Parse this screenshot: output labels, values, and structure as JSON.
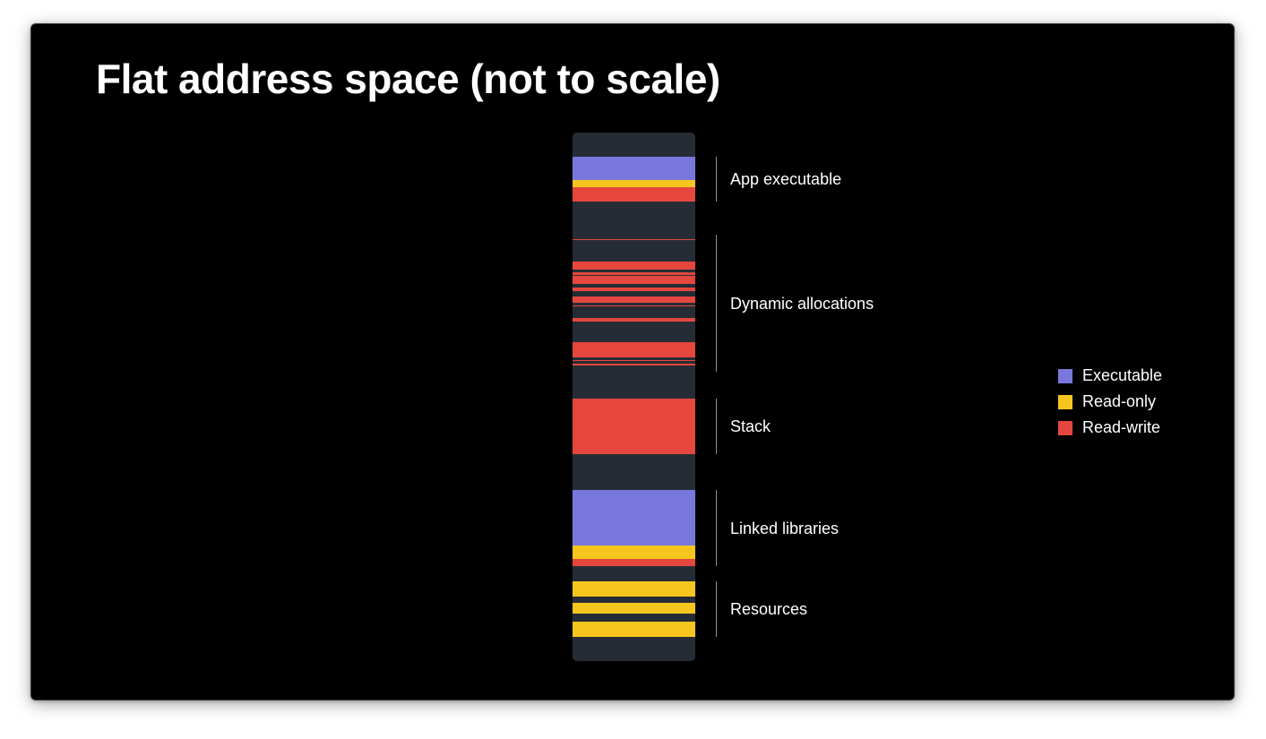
{
  "title": "Flat address space (not to scale)",
  "colors": {
    "executable": "#7878dc",
    "read_only": "#f7c61e",
    "read_write": "#e5473e",
    "unmapped": "#262c35"
  },
  "regions": [
    {
      "label": "App executable",
      "segments": [
        {
          "type": "executable",
          "from": 0.046,
          "to": 0.09
        },
        {
          "type": "read_only",
          "from": 0.09,
          "to": 0.104
        },
        {
          "type": "read_write",
          "from": 0.104,
          "to": 0.131
        }
      ]
    },
    {
      "label": "Dynamic allocations",
      "segments": [
        {
          "type": "read_write",
          "from": 0.201,
          "to": 0.204
        },
        {
          "type": "read_write",
          "from": 0.244,
          "to": 0.26
        },
        {
          "type": "read_write",
          "from": 0.264,
          "to": 0.269
        },
        {
          "type": "read_write",
          "from": 0.272,
          "to": 0.287
        },
        {
          "type": "read_write",
          "from": 0.293,
          "to": 0.3
        },
        {
          "type": "read_write",
          "from": 0.311,
          "to": 0.322
        },
        {
          "type": "read_write",
          "from": 0.327,
          "to": 0.329
        },
        {
          "type": "read_write",
          "from": 0.351,
          "to": 0.357
        },
        {
          "type": "read_write",
          "from": 0.396,
          "to": 0.426
        },
        {
          "type": "read_write",
          "from": 0.43,
          "to": 0.433
        },
        {
          "type": "read_write",
          "from": 0.437,
          "to": 0.441
        }
      ]
    },
    {
      "label": "Stack",
      "segments": [
        {
          "type": "read_write",
          "from": 0.504,
          "to": 0.608
        }
      ]
    },
    {
      "label": "Linked libraries",
      "segments": [
        {
          "type": "executable",
          "from": 0.677,
          "to": 0.781
        },
        {
          "type": "read_only",
          "from": 0.781,
          "to": 0.806
        },
        {
          "type": "read_write",
          "from": 0.806,
          "to": 0.821
        }
      ]
    },
    {
      "label": "Resources",
      "segments": [
        {
          "type": "read_only",
          "from": 0.849,
          "to": 0.878
        },
        {
          "type": "read_only",
          "from": 0.89,
          "to": 0.91
        },
        {
          "type": "read_only",
          "from": 0.925,
          "to": 0.955
        }
      ]
    }
  ],
  "region_spans": [
    {
      "from": 0.046,
      "to": 0.131
    },
    {
      "from": 0.193,
      "to": 0.453
    },
    {
      "from": 0.504,
      "to": 0.608
    },
    {
      "from": 0.677,
      "to": 0.821
    },
    {
      "from": 0.849,
      "to": 0.955
    }
  ],
  "legend": [
    {
      "key": "executable",
      "label": "Executable",
      "icon": "square-swatch"
    },
    {
      "key": "read_only",
      "label": "Read-only",
      "icon": "square-swatch"
    },
    {
      "key": "read_write",
      "label": "Read-write",
      "icon": "square-swatch"
    }
  ]
}
